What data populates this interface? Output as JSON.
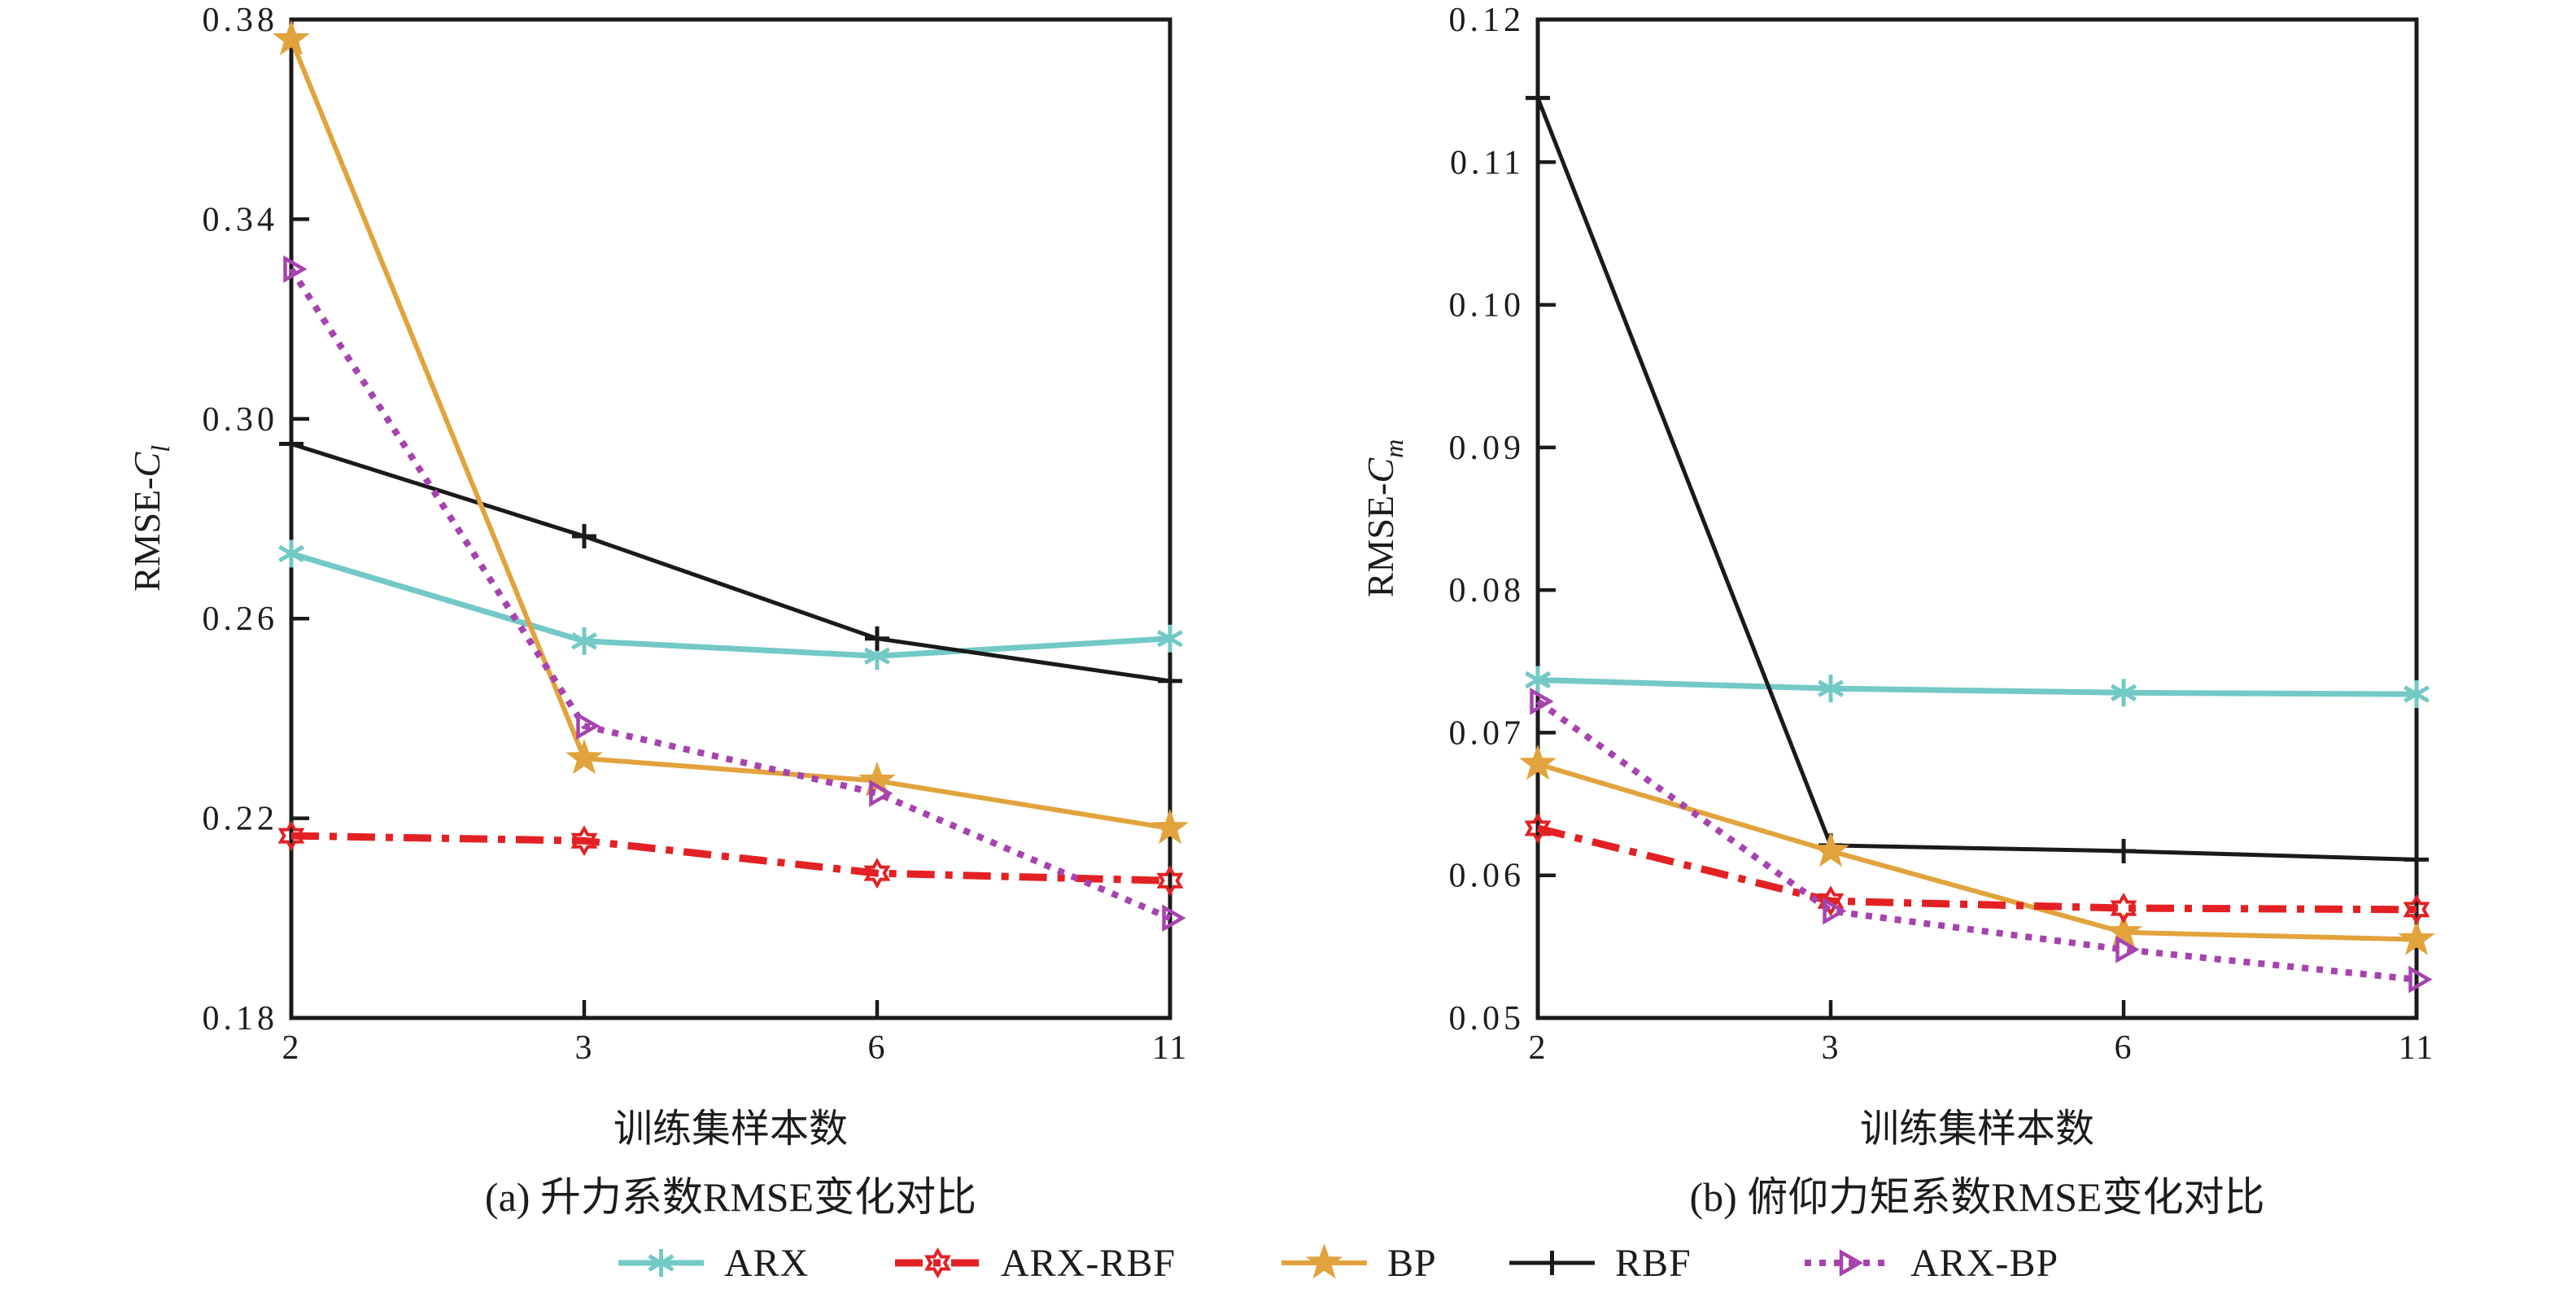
{
  "page": {
    "background": "#ffffff"
  },
  "legend": {
    "items": [
      {
        "label": "ARX",
        "color": "#72C9C6",
        "line": "solid",
        "marker": "asterisk"
      },
      {
        "label": "ARX-RBF",
        "color": "#E32124",
        "line": "dashdot",
        "marker": "hexagram-open"
      },
      {
        "label": "BP",
        "color": "#E2A33C",
        "line": "solid",
        "marker": "star-filled"
      },
      {
        "label": "RBF",
        "color": "#1A1A1A",
        "line": "solid",
        "marker": "plus"
      },
      {
        "label": "ARX-BP",
        "color": "#A643AE",
        "line": "dotted",
        "marker": "triangle-right-open"
      }
    ]
  },
  "chart_data": [
    {
      "id": "a",
      "type": "line",
      "title": "(a) 升力系数RMSE变化对比",
      "xlabel": "训练集样本数",
      "ylabel": "RMSE-",
      "ylabel_var": "C",
      "ylabel_sub": "l",
      "categories": [
        "2",
        "3",
        "6",
        "11"
      ],
      "ylim": [
        0.18,
        0.38
      ],
      "yticks": [
        "0.18",
        "0.22",
        "0.26",
        "0.30",
        "0.34",
        "0.38"
      ],
      "grid": "off",
      "series": [
        {
          "name": "ARX",
          "values": [
            0.273,
            0.2555,
            0.2525,
            0.256
          ]
        },
        {
          "name": "RBF",
          "values": [
            0.295,
            0.2765,
            0.256,
            0.2475
          ]
        },
        {
          "name": "BP",
          "values": [
            0.376,
            0.232,
            0.2275,
            0.218
          ]
        },
        {
          "name": "ARX-RBF",
          "values": [
            0.2165,
            0.2155,
            0.209,
            0.2075
          ]
        },
        {
          "name": "ARX-BP",
          "values": [
            0.33,
            0.2385,
            0.225,
            0.2
          ]
        }
      ]
    },
    {
      "id": "b",
      "type": "line",
      "title": "(b) 俯仰力矩系数RMSE变化对比",
      "xlabel": "训练集样本数",
      "ylabel": "RMSE-",
      "ylabel_var": "C",
      "ylabel_sub": "m",
      "categories": [
        "2",
        "3",
        "6",
        "11"
      ],
      "ylim": [
        0.05,
        0.12
      ],
      "yticks": [
        "0.05",
        "0.06",
        "0.07",
        "0.08",
        "0.09",
        "0.10",
        "0.11",
        "0.12"
      ],
      "grid": "off",
      "series": [
        {
          "name": "ARX",
          "values": [
            0.0737,
            0.0731,
            0.0728,
            0.0727
          ]
        },
        {
          "name": "RBF",
          "values": [
            0.1145,
            0.0621,
            0.0617,
            0.0611
          ]
        },
        {
          "name": "BP",
          "values": [
            0.0678,
            0.0617,
            0.056,
            0.0555
          ]
        },
        {
          "name": "ARX-RBF",
          "values": [
            0.0633,
            0.0582,
            0.0577,
            0.0576
          ]
        },
        {
          "name": "ARX-BP",
          "values": [
            0.0722,
            0.0575,
            0.0548,
            0.0527
          ]
        }
      ]
    }
  ]
}
